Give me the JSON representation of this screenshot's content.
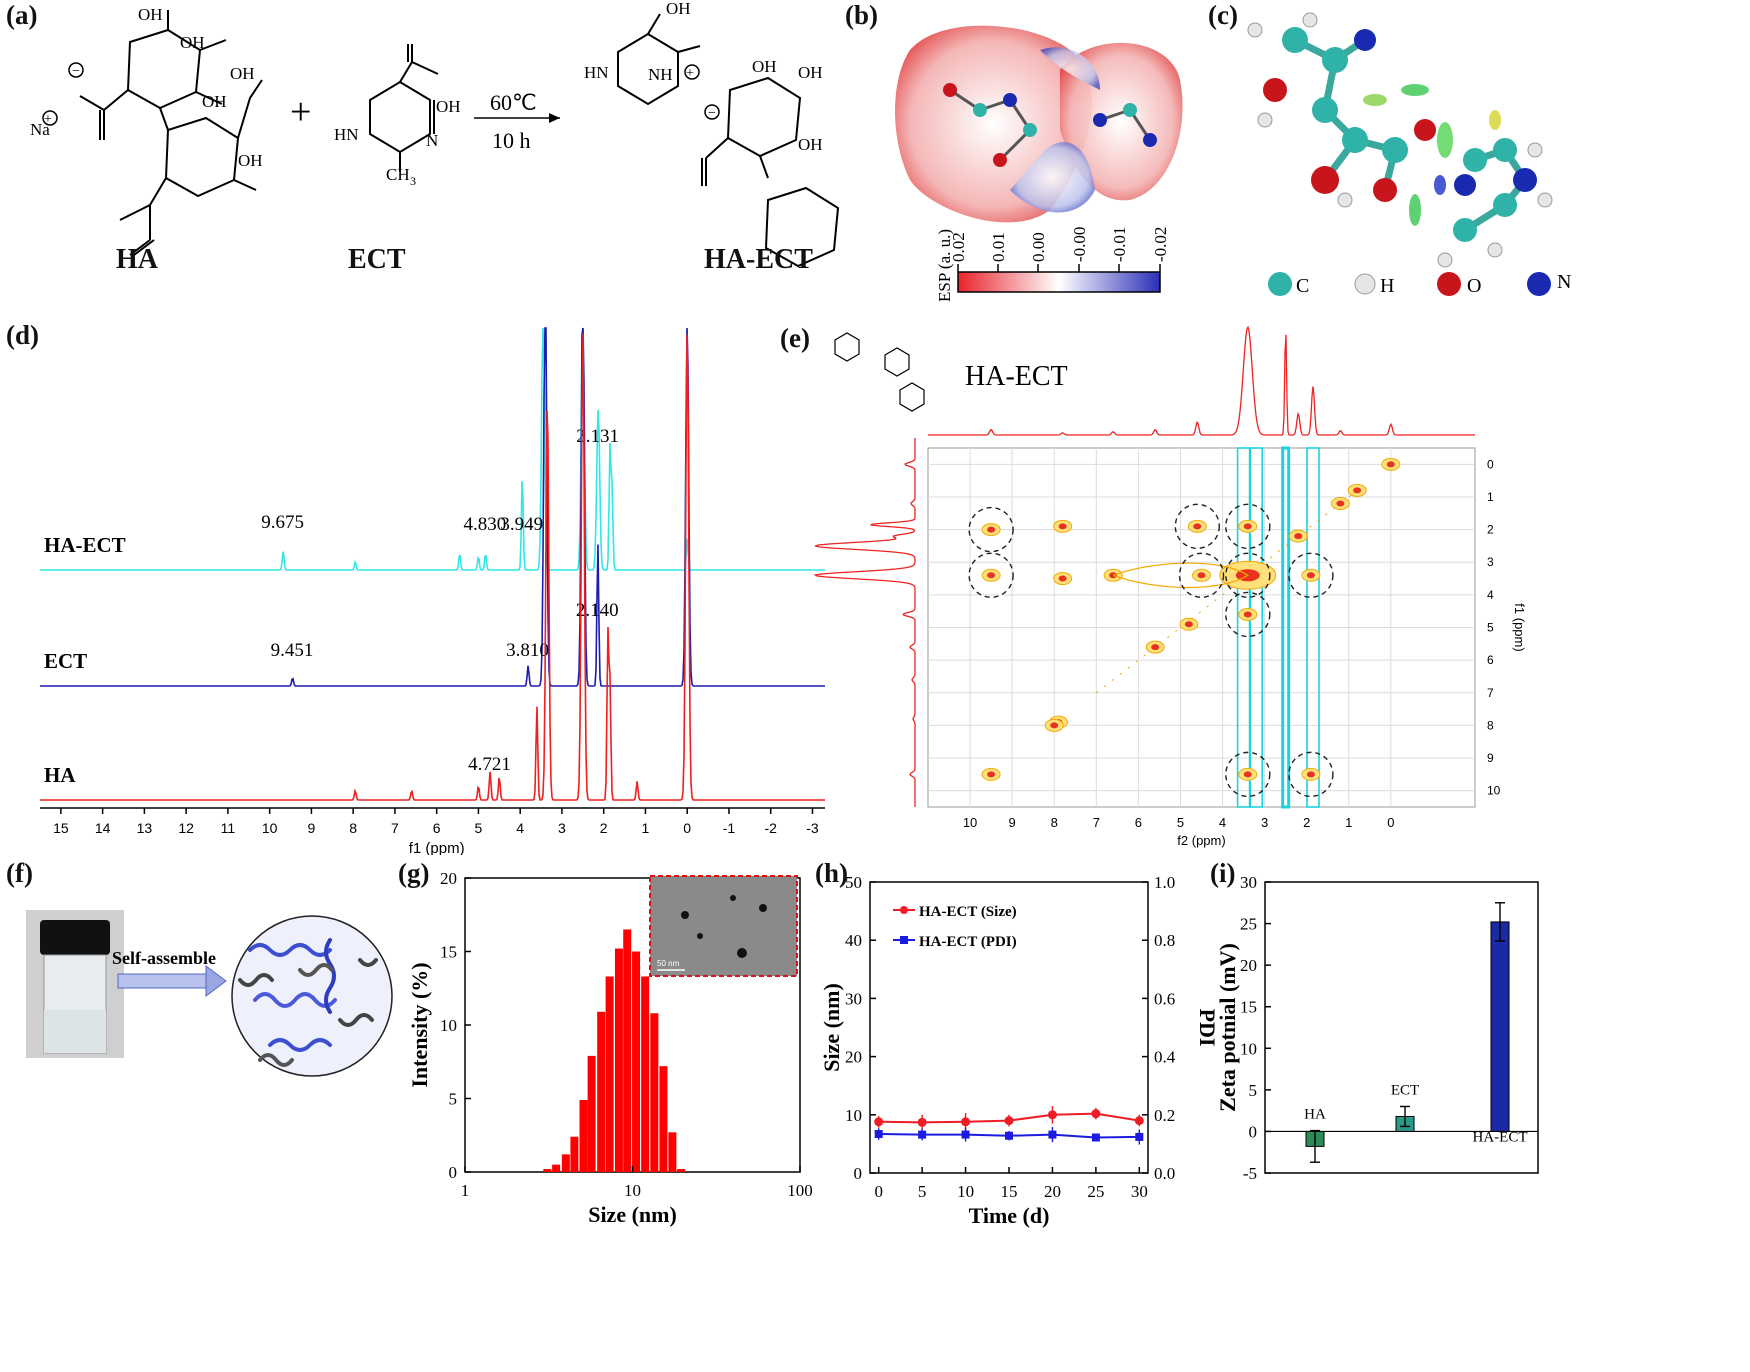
{
  "panels": {
    "a": "(a)",
    "b": "(b)",
    "c": "(c)",
    "d": "(d)",
    "e": "(e)",
    "f": "(f)",
    "g": "(g)",
    "h": "(h)",
    "i": "(i)"
  },
  "scheme": {
    "compounds": [
      "HA",
      "ECT",
      "HA-ECT"
    ],
    "conditions": {
      "temp": "60℃",
      "time": "10 h"
    },
    "na_label": "Na",
    "atom_labels": {
      "oh": "OH",
      "hn": "HN",
      "nh": "NH",
      "n": "N",
      "ch3": "CH",
      "sub3": "3",
      "o": "O"
    }
  },
  "esp": {
    "label": "ESP (a. u.)",
    "ticks": [
      "0.02",
      "0.01",
      "0.00",
      "-0.00",
      "-0.01",
      "-0.02"
    ]
  },
  "atoms_legend": {
    "items": [
      {
        "symbol": "C",
        "color": "#2fb3a8"
      },
      {
        "symbol": "H",
        "color": "#d8d8d8"
      },
      {
        "symbol": "O",
        "color": "#c8141b"
      },
      {
        "symbol": "N",
        "color": "#1a2ab0"
      }
    ]
  },
  "self_assemble": {
    "label": "Self-assemble"
  },
  "tem_scale": {
    "label": "50 nm"
  },
  "chart_data": [
    {
      "panel": "d",
      "type": "line",
      "xlabel": "f1 (ppm)",
      "xlim": [
        15.5,
        -3.3
      ],
      "xticks": [
        15,
        14,
        13,
        12,
        11,
        10,
        9,
        8,
        7,
        6,
        5,
        4,
        3,
        2,
        1,
        0,
        -1,
        -2,
        -3
      ],
      "series": [
        {
          "name": "HA-ECT",
          "color": "#2ee8e8",
          "peaks": [
            [
              9.675,
              0.07
            ],
            [
              7.95,
              0.03
            ],
            [
              5.45,
              0.06
            ],
            [
              5.0,
              0.05
            ],
            [
              4.83,
              0.06
            ],
            [
              3.949,
              0.35
            ],
            [
              3.45,
              1.0
            ],
            [
              2.5,
              1.0
            ],
            [
              2.131,
              0.6
            ],
            [
              1.85,
              0.45
            ],
            [
              1.8,
              0.3
            ],
            [
              0,
              0.12
            ]
          ],
          "labels": [
            {
              "x": 9.675,
              "text": "9.675"
            },
            {
              "x": 4.83,
              "text": "4.830"
            },
            {
              "x": 3.949,
              "text": "3.949"
            },
            {
              "x": 2.131,
              "text": "2.131"
            }
          ]
        },
        {
          "name": "ECT",
          "color": "#1c1cb0",
          "peaks": [
            [
              9.451,
              0.02
            ],
            [
              3.81,
              0.05
            ],
            [
              3.4,
              1.0
            ],
            [
              2.5,
              1.0
            ],
            [
              2.14,
              0.35
            ],
            [
              0,
              0.9
            ]
          ],
          "labels": [
            {
              "x": 9.451,
              "text": "9.451"
            },
            {
              "x": 3.81,
              "text": "3.810"
            },
            {
              "x": 2.14,
              "text": "2.140"
            }
          ]
        },
        {
          "name": "HA",
          "color": "#ee2020",
          "peaks": [
            [
              7.95,
              0.02
            ],
            [
              6.6,
              0.02
            ],
            [
              5.0,
              0.03
            ],
            [
              4.721,
              0.06
            ],
            [
              4.5,
              0.05
            ],
            [
              3.6,
              0.2
            ],
            [
              3.35,
              0.85
            ],
            [
              2.5,
              1.0
            ],
            [
              1.9,
              0.35
            ],
            [
              1.85,
              0.25
            ],
            [
              1.2,
              0.04
            ],
            [
              0,
              1.0
            ]
          ],
          "labels": [
            {
              "x": 4.721,
              "text": "4.721"
            }
          ]
        }
      ]
    },
    {
      "panel": "e",
      "type": "heatmap",
      "title": "HA-ECT",
      "xlabel": "f2 (ppm)",
      "ylabel": "f1 (ppm)",
      "xlim": [
        11,
        -2
      ],
      "ylim": [
        -0.5,
        10.5
      ],
      "xticks": [
        10,
        9,
        8,
        7,
        6,
        5,
        4,
        3,
        2,
        1,
        0
      ],
      "yticks": [
        0,
        1,
        2,
        3,
        4,
        5,
        6,
        7,
        8,
        9,
        10
      ],
      "cross_peaks": [
        [
          9.5,
          2.0
        ],
        [
          9.5,
          3.4
        ],
        [
          4.6,
          1.9
        ],
        [
          3.4,
          1.9
        ],
        [
          4.5,
          3.4
        ],
        [
          3.4,
          3.4
        ],
        [
          1.9,
          3.4
        ],
        [
          3.4,
          4.6
        ],
        [
          3.4,
          9.5
        ],
        [
          1.9,
          9.5
        ],
        [
          7.8,
          3.5
        ],
        [
          7.8,
          1.9
        ],
        [
          6.6,
          3.4
        ],
        [
          9.5,
          9.5
        ],
        [
          0,
          0
        ],
        [
          7.9,
          7.9
        ],
        [
          8.0,
          8.0
        ],
        [
          5.6,
          5.6
        ],
        [
          4.8,
          4.9
        ],
        [
          2.2,
          2.2
        ],
        [
          1.2,
          1.2
        ],
        [
          0.8,
          0.8
        ]
      ],
      "circled": [
        [
          9.5,
          2.0
        ],
        [
          9.5,
          3.4
        ],
        [
          4.6,
          1.9
        ],
        [
          3.4,
          1.9
        ],
        [
          4.5,
          3.4
        ],
        [
          3.4,
          3.4
        ],
        [
          1.9,
          3.4
        ],
        [
          3.4,
          4.6
        ],
        [
          3.4,
          9.5
        ],
        [
          1.9,
          9.5
        ]
      ],
      "projection_peaks": [
        [
          9.5,
          0.05
        ],
        [
          7.8,
          0.02
        ],
        [
          6.6,
          0.03
        ],
        [
          5.6,
          0.05
        ],
        [
          4.6,
          0.12
        ],
        [
          3.4,
          1.0
        ],
        [
          2.5,
          1.0
        ],
        [
          2.2,
          0.2
        ],
        [
          1.85,
          0.45
        ],
        [
          1.2,
          0.04
        ],
        [
          0,
          0.1
        ]
      ]
    },
    {
      "panel": "g",
      "type": "bar",
      "xlabel": "Size (nm)",
      "ylabel": "Intensity (%)",
      "xscale": "log",
      "xlim": [
        1,
        100
      ],
      "ylim": [
        0,
        20
      ],
      "xticks": [
        1,
        10,
        100
      ],
      "yticks": [
        0,
        5,
        10,
        15,
        20
      ],
      "x": [
        3.1,
        3.5,
        4.0,
        4.5,
        5.1,
        5.7,
        6.5,
        7.3,
        8.3,
        9.3,
        10.5,
        11.9,
        13.5,
        15.3,
        17.3,
        19.5
      ],
      "values": [
        0.2,
        0.5,
        1.2,
        2.4,
        4.9,
        7.9,
        10.9,
        13.3,
        15.2,
        16.5,
        15.0,
        13.3,
        10.8,
        7.2,
        2.7,
        0.2
      ],
      "color": "#ff0000"
    },
    {
      "panel": "h",
      "type": "line",
      "xlabel": "Time (d)",
      "ylabel": "Size (nm)",
      "y2label": "PDI",
      "xlim": [
        -1,
        31
      ],
      "ylim": [
        0,
        50
      ],
      "y2lim": [
        0,
        1.0
      ],
      "xticks": [
        0,
        5,
        10,
        15,
        20,
        25,
        30
      ],
      "yticks": [
        0,
        10,
        20,
        30,
        40,
        50
      ],
      "y2ticks": [
        0.0,
        0.2,
        0.4,
        0.6,
        0.8,
        1.0
      ],
      "x": [
        0,
        5,
        10,
        15,
        20,
        25,
        30
      ],
      "series": [
        {
          "name": "HA-ECT (Size)",
          "axis": "left",
          "color": "#ee1c24",
          "values": [
            8.8,
            8.7,
            8.8,
            9.0,
            10.0,
            10.2,
            9.0
          ],
          "err": [
            1.0,
            1.3,
            1.5,
            1.0,
            1.5,
            1.0,
            1.0
          ]
        },
        {
          "name": "HA-ECT (PDI)",
          "axis": "right",
          "color": "#1c1ce0",
          "values": [
            0.134,
            0.132,
            0.132,
            0.128,
            0.132,
            0.122,
            0.124
          ],
          "err": [
            0.02,
            0.02,
            0.024,
            0.016,
            0.026,
            0.006,
            0.026
          ]
        }
      ],
      "legend": "top-left"
    },
    {
      "panel": "i",
      "type": "bar",
      "ylabel": "Zeta potnial (mV)",
      "ylim": [
        -5,
        30
      ],
      "yticks": [
        -5,
        0,
        5,
        10,
        15,
        20,
        25,
        30
      ],
      "categories": [
        "HA",
        "ECT",
        "HA-ECT"
      ],
      "values": [
        -1.8,
        1.8,
        25.2
      ],
      "err": [
        1.9,
        1.2,
        2.3
      ],
      "colors": [
        "#2e8b57",
        "#2a9a86",
        "#1a2aa5"
      ]
    }
  ]
}
